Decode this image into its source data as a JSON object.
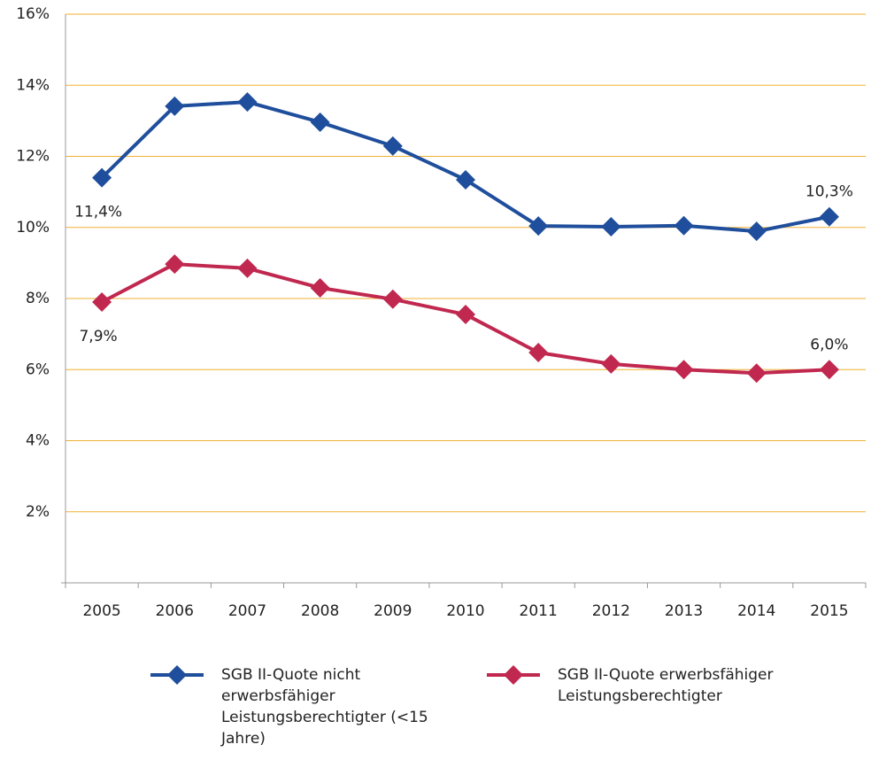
{
  "chart_data": {
    "type": "line",
    "categories": [
      "2005",
      "2006",
      "2007",
      "2008",
      "2009",
      "2010",
      "2011",
      "2012",
      "2013",
      "2014",
      "2015"
    ],
    "series": [
      {
        "name": "SGB II-Quote nicht erwerbsfähiger Leistungsberechtigter (<15 Jahre)",
        "color": "#1f4e9c",
        "values": [
          11.4,
          13.41,
          13.53,
          12.96,
          12.29,
          11.34,
          10.04,
          10.02,
          10.05,
          9.89,
          10.3
        ],
        "value_labels": [
          "11,4%",
          null,
          null,
          null,
          null,
          null,
          null,
          null,
          null,
          null,
          "10,3%"
        ]
      },
      {
        "name": "SGB II-Quote erwerbsfähiger Leistungsberechtigter",
        "color": "#c0284f",
        "values": [
          7.9,
          8.97,
          8.85,
          8.3,
          7.98,
          7.55,
          6.48,
          6.16,
          6.0,
          5.9,
          6.0
        ],
        "value_labels": [
          "7,9%",
          null,
          null,
          null,
          null,
          null,
          null,
          null,
          null,
          null,
          "6,0%"
        ]
      }
    ],
    "ylim": [
      0,
      16
    ],
    "yticks": [
      {
        "value": 2,
        "label": "2%"
      },
      {
        "value": 4,
        "label": "4%"
      },
      {
        "value": 6,
        "label": "6%"
      },
      {
        "value": 8,
        "label": "8%"
      },
      {
        "value": 10,
        "label": "10%"
      },
      {
        "value": 12,
        "label": "12%"
      },
      {
        "value": 14,
        "label": "14%"
      },
      {
        "value": 16,
        "label": "16%"
      }
    ],
    "grid": true,
    "grid_color": "#f0b030"
  }
}
